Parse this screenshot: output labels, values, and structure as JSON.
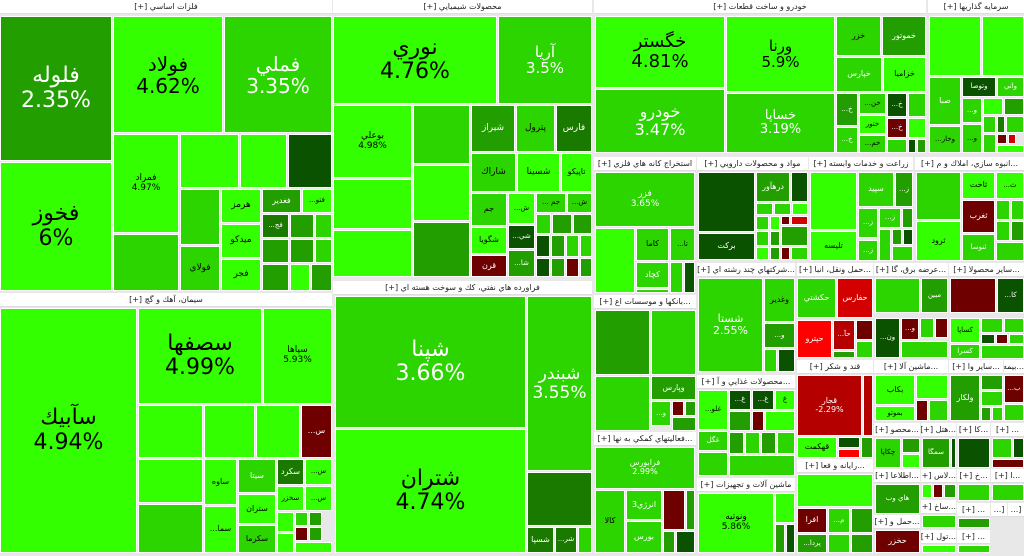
{
  "colors": {
    "b": "#33ff00",
    "m": "#2cd400",
    "d": "#229e00",
    "k": "#1a7a00",
    "v": "#0b5200",
    "r": "#6e0000",
    "Q": "#b50000",
    "R": "#d40000",
    "F": "#ff0000"
  },
  "sectors": [
    {
      "title": "فلزات اساسي [+]",
      "tiles": [
        {
          "symbol": "فلوله",
          "change": "2.35%"
        },
        {
          "symbol": "فخوز",
          "change": "6%"
        },
        {
          "symbol": "فولاد",
          "change": "4.62%"
        },
        {
          "symbol": "فملي",
          "change": "3.35%"
        },
        {
          "symbol": "فمراد",
          "change": "4.97%"
        },
        {
          "symbol": "هرمز",
          "change": ""
        },
        {
          "symbol": "ميدكو",
          "change": ""
        },
        {
          "symbol": "فجر",
          "change": ""
        },
        {
          "symbol": "فولاي",
          "change": ""
        },
        {
          "symbol": "فغدير",
          "change": ""
        },
        {
          "symbol": "فتو...",
          "change": ""
        },
        {
          "symbol": "فج...",
          "change": ""
        }
      ]
    },
    {
      "title": "محصولات شيميايي [+]",
      "tiles": [
        {
          "symbol": "نوري",
          "change": "4.76%"
        },
        {
          "symbol": "آريا",
          "change": "3.5%"
        },
        {
          "symbol": "بوعلي",
          "change": "4.98%"
        },
        {
          "symbol": "شيراز",
          "change": ""
        },
        {
          "symbol": "پترول",
          "change": ""
        },
        {
          "symbol": "فارس",
          "change": ""
        },
        {
          "symbol": "شاراك",
          "change": ""
        },
        {
          "symbol": "شسينا",
          "change": ""
        },
        {
          "symbol": "تاپيكو",
          "change": ""
        },
        {
          "symbol": "جم",
          "change": ""
        },
        {
          "symbol": "شگويا",
          "change": ""
        },
        {
          "symbol": "قرن",
          "change": ""
        },
        {
          "symbol": "ش...",
          "change": ""
        },
        {
          "symbol": "شي...",
          "change": ""
        },
        {
          "symbol": "شا...",
          "change": ""
        },
        {
          "symbol": "جم ...",
          "change": ""
        },
        {
          "symbol": "ش...",
          "change": ""
        }
      ]
    },
    {
      "title": "فراورده هاي نفتي، كك و سوخت هسته اي [+]",
      "tiles": [
        {
          "symbol": "شپنا",
          "change": "3.66%"
        },
        {
          "symbol": "شتران",
          "change": "4.74%"
        },
        {
          "symbol": "شبندر",
          "change": "3.55%"
        },
        {
          "symbol": "شسپا",
          "change": ""
        },
        {
          "symbol": "شر...",
          "change": ""
        }
      ]
    },
    {
      "title": "سيمان، آهك و گچ [+]",
      "tiles": [
        {
          "symbol": "سآبيك",
          "change": "4.94%"
        },
        {
          "symbol": "سصفها",
          "change": "4.99%"
        },
        {
          "symbol": "سپاها",
          "change": "5.93%"
        },
        {
          "symbol": "س...",
          "change": ""
        },
        {
          "symbol": "ساوه",
          "change": ""
        },
        {
          "symbol": "سما...",
          "change": ""
        },
        {
          "symbol": "سيتا",
          "change": ""
        },
        {
          "symbol": "ستران",
          "change": ""
        },
        {
          "symbol": "سكرما",
          "change": ""
        },
        {
          "symbol": "سكرد",
          "change": ""
        },
        {
          "symbol": "س...",
          "change": ""
        },
        {
          "symbol": "سخزر",
          "change": ""
        },
        {
          "symbol": "س...",
          "change": ""
        }
      ]
    },
    {
      "title": "خودرو و ساخت قطعات [+]",
      "tiles": [
        {
          "symbol": "خگستر",
          "change": "4.81%"
        },
        {
          "symbol": "خودرو",
          "change": "3.47%"
        },
        {
          "symbol": "ورنا",
          "change": "5.9%"
        },
        {
          "symbol": "خساپا",
          "change": "3.19%"
        },
        {
          "symbol": "خزر",
          "change": ""
        },
        {
          "symbol": "خموتور",
          "change": ""
        },
        {
          "symbol": "خپارس",
          "change": ""
        },
        {
          "symbol": "خزاميا",
          "change": ""
        },
        {
          "symbol": "خ...",
          "change": ""
        },
        {
          "symbol": "خ...",
          "change": ""
        },
        {
          "symbol": "خن...",
          "change": ""
        },
        {
          "symbol": "ختور",
          "change": ""
        },
        {
          "symbol": "خم...",
          "change": ""
        },
        {
          "symbol": "خ...",
          "change": ""
        },
        {
          "symbol": "خ...",
          "change": ""
        }
      ]
    },
    {
      "title": "سرمايه گذاريها [+]",
      "tiles": [
        {
          "symbol": "صبا",
          "change": ""
        },
        {
          "symbol": "وتوصا",
          "change": ""
        },
        {
          "symbol": "واتي",
          "change": ""
        },
        {
          "symbol": "و...",
          "change": ""
        },
        {
          "symbol": "وخار...",
          "change": ""
        },
        {
          "symbol": "و...",
          "change": ""
        }
      ]
    },
    {
      "title": "استخراج كانه هاي فلزي [+]",
      "tiles": [
        {
          "symbol": "فزر",
          "change": "3.65%"
        },
        {
          "symbol": "كاما",
          "change": ""
        },
        {
          "symbol": "تا...",
          "change": ""
        },
        {
          "symbol": "كچاد",
          "change": ""
        }
      ]
    },
    {
      "title": "مواد و محصولات دارويي [+]",
      "tiles": [
        {
          "symbol": "بركت",
          "change": ""
        },
        {
          "symbol": "درهآور",
          "change": ""
        }
      ]
    },
    {
      "title": "زراعت و خدمات وابسته [+]",
      "tiles": [
        {
          "symbol": "تليسه",
          "change": ""
        },
        {
          "symbol": "سپيد",
          "change": ""
        },
        {
          "symbol": "ز...",
          "change": ""
        },
        {
          "symbol": "ز...",
          "change": ""
        },
        {
          "symbol": "ز...",
          "change": ""
        },
        {
          "symbol": "ز...",
          "change": ""
        }
      ]
    },
    {
      "title": "...انبوه سازي، املاك و م [+]",
      "tiles": [
        {
          "symbol": "ثاخت",
          "change": ""
        },
        {
          "symbol": "ث...",
          "change": ""
        },
        {
          "symbol": "ثغرب",
          "change": ""
        },
        {
          "symbol": "ثرود",
          "change": ""
        },
        {
          "symbol": "ثنوسا",
          "change": ""
        }
      ]
    },
    {
      "title": "...شركتهاي چند رشته اي [+]",
      "tiles": [
        {
          "symbol": "شستا",
          "change": "2.55%"
        },
        {
          "symbol": "وغدير",
          "change": ""
        },
        {
          "symbol": "و...",
          "change": ""
        }
      ]
    },
    {
      "title": "...حمل ونقل، انبا [+]",
      "tiles": [
        {
          "symbol": "حكشتي",
          "change": ""
        },
        {
          "symbol": "حفارس",
          "change": ""
        },
        {
          "symbol": "حپترو",
          "change": ""
        },
        {
          "symbol": "حآ...",
          "change": ""
        }
      ]
    },
    {
      "title": "...عرضه برق، گا [+]",
      "tiles": [
        {
          "symbol": "مبين",
          "change": ""
        },
        {
          "symbol": "ون...",
          "change": ""
        },
        {
          "symbol": "و...",
          "change": ""
        }
      ]
    },
    {
      "title": "...ساير محصولا [+]",
      "tiles": [
        {
          "symbol": "كا...",
          "change": ""
        },
        {
          "symbol": "كساپا",
          "change": ""
        },
        {
          "symbol": "كسرا",
          "change": ""
        }
      ]
    },
    {
      "title": "...بانكها و موسسات اع [+]",
      "tiles": [
        {
          "symbol": "وپارس",
          "change": ""
        },
        {
          "symbol": "و...",
          "change": ""
        }
      ]
    },
    {
      "title": "...فعاليتهاي كمكي به نها [+]",
      "tiles": [
        {
          "symbol": "فرابورس",
          "change": "2.99%"
        },
        {
          "symbol": "كالا",
          "change": ""
        },
        {
          "symbol": "انرژي3",
          "change": ""
        },
        {
          "symbol": "بورس",
          "change": ""
        }
      ]
    },
    {
      "title": "...محصولات غذايي و آ [+]",
      "tiles": [
        {
          "symbol": "غلو...",
          "change": ""
        },
        {
          "symbol": "غ...",
          "change": ""
        },
        {
          "symbol": "غ...",
          "change": ""
        },
        {
          "symbol": "غ",
          "change": ""
        },
        {
          "symbol": "غگل",
          "change": ""
        }
      ]
    },
    {
      "title": "ماشين آلات و تجهيزات [+]",
      "tiles": [
        {
          "symbol": "ونوتيه",
          "change": "5.86%"
        }
      ]
    },
    {
      "title": "قند و شكر [+]",
      "tiles": [
        {
          "symbol": "قجار",
          "change": "-2.29%"
        },
        {
          "symbol": "قهكمت",
          "change": ""
        }
      ]
    },
    {
      "title": "...رايانه و فعا [+]",
      "tiles": [
        {
          "symbol": "افرا",
          "change": ""
        },
        {
          "symbol": "م...",
          "change": ""
        },
        {
          "symbol": "پردا...",
          "change": ""
        }
      ]
    },
    {
      "title": "...ماشين آلا [+]",
      "tiles": [
        {
          "symbol": "بكاب",
          "change": ""
        },
        {
          "symbol": "بموتو",
          "change": ""
        }
      ]
    },
    {
      "title": "...ساير وا [+]",
      "tiles": [
        {
          "symbol": "ولكار",
          "change": ""
        }
      ]
    },
    {
      "title": "...بيمه [+]",
      "tiles": [
        {
          "symbol": "ب...",
          "change": ""
        }
      ]
    },
    {
      "title": "...محصو [+]",
      "tiles": [
        {
          "symbol": "چكاپا",
          "change": ""
        }
      ]
    },
    {
      "title": "...هتل [+]",
      "tiles": [
        {
          "symbol": "سمگا",
          "change": ""
        }
      ]
    },
    {
      "title": "...كا [+]",
      "tiles": []
    },
    {
      "title": "... [+]",
      "tiles": []
    },
    {
      "title": "...اطلاعا [+]",
      "tiles": [
        {
          "symbol": "هاي وب",
          "change": ""
        }
      ]
    },
    {
      "title": "...لاس [+]",
      "tiles": []
    },
    {
      "title": "...خ [+]",
      "tiles": []
    },
    {
      "title": "...ا [+]",
      "tiles": []
    },
    {
      "title": "...حمل و [+]",
      "tiles": [
        {
          "symbol": "حخزر",
          "change": ""
        }
      ]
    },
    {
      "title": "...ساخ [+]",
      "tiles": []
    },
    {
      "title": "...تول [+]",
      "tiles": []
    },
    {
      "title": "... [+]",
      "tiles": []
    },
    {
      "title": "... [+]",
      "tiles": []
    },
    {
      "title": "[...",
      "tiles": []
    },
    {
      "title": "[...",
      "tiles": []
    }
  ]
}
